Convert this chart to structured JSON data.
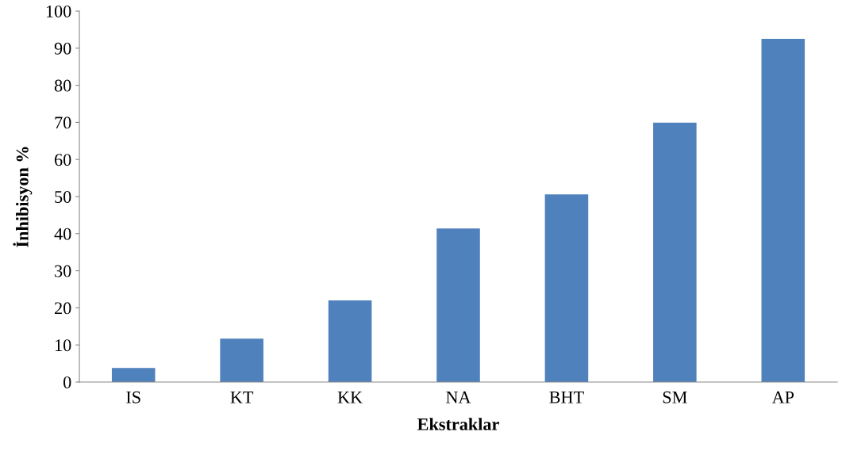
{
  "chart_data": {
    "type": "bar",
    "xlabel": "Ekstraklar",
    "ylabel": "İnhibisyon %",
    "categories": [
      "IS",
      "KT",
      "KK",
      "NA",
      "BHT",
      "SM",
      "AP"
    ],
    "values": [
      3.8,
      11.7,
      22.0,
      41.4,
      50.6,
      69.9,
      92.5
    ],
    "color": "#4f81bd",
    "ylim": [
      0,
      100
    ],
    "yticks": [
      0,
      10,
      20,
      30,
      40,
      50,
      60,
      70,
      80,
      90,
      100
    ],
    "grid": false,
    "legend": false
  }
}
